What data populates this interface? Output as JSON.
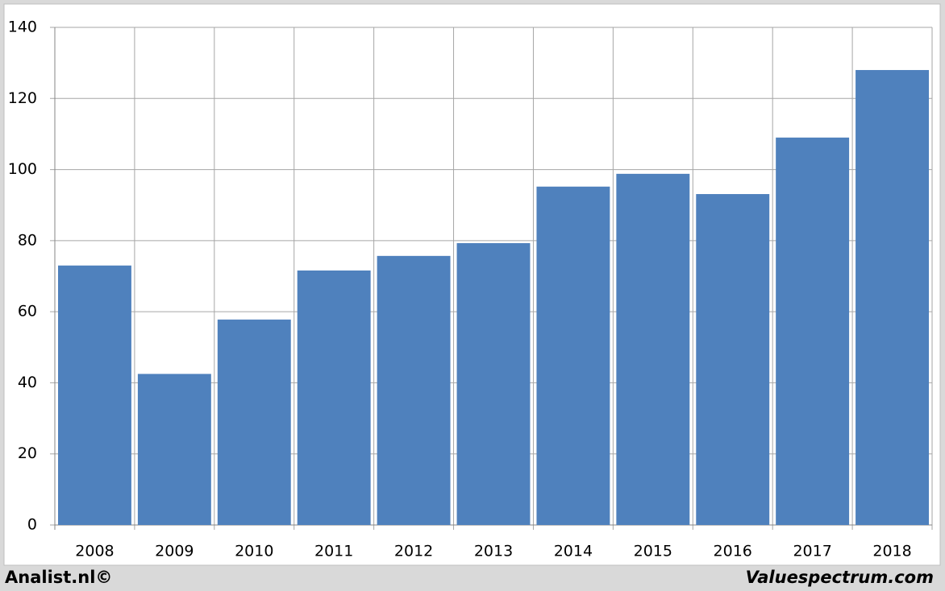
{
  "chart_data": {
    "type": "bar",
    "categories": [
      "2008",
      "2009",
      "2010",
      "2011",
      "2012",
      "2013",
      "2014",
      "2015",
      "2016",
      "2017",
      "2018"
    ],
    "values": [
      73,
      42.5,
      57.8,
      71.6,
      75.7,
      79.3,
      95.2,
      98.8,
      93.1,
      109,
      128
    ],
    "color": "#4f81bd",
    "ylim": [
      0,
      140
    ],
    "yticks": [
      0,
      20,
      40,
      60,
      80,
      100,
      120,
      140
    ],
    "grid": true,
    "footer_left": "Analist.nl©",
    "footer_right": "Valuespectrum.com"
  }
}
